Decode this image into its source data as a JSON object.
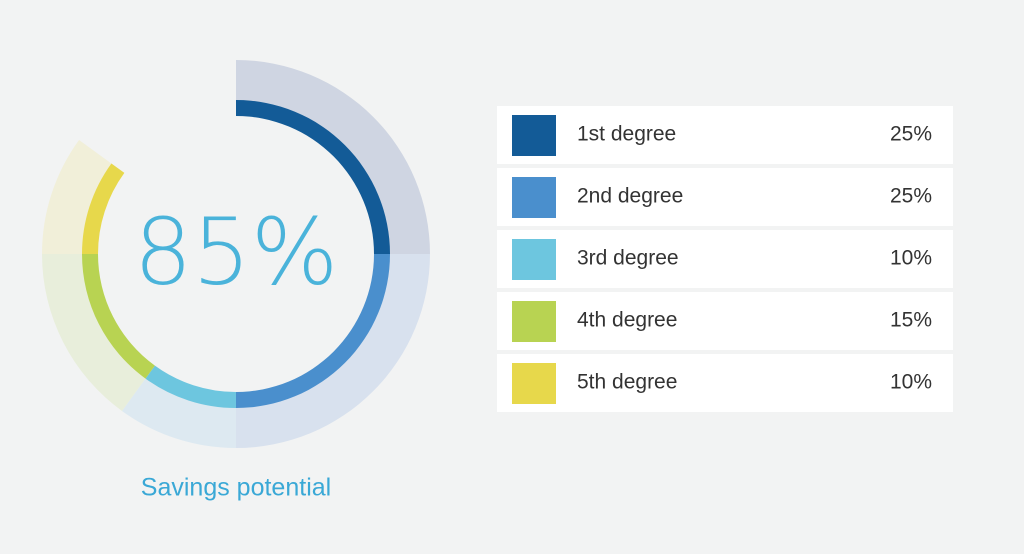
{
  "chart_data": {
    "type": "donut",
    "center_label": "85%",
    "caption": "Savings potential",
    "categories": [
      "1st degree",
      "2nd degree",
      "3rd degree",
      "4th degree",
      "5th degree"
    ],
    "values": [
      25,
      25,
      10,
      15,
      10
    ],
    "value_labels": [
      "25%",
      "25%",
      "10%",
      "15%",
      "10%"
    ],
    "colors": [
      "#135b97",
      "#4a8fcd",
      "#6dc6df",
      "#b8d352",
      "#e7d84b"
    ],
    "pale_colors": [
      "#cfd5e2",
      "#d8e1ee",
      "#dde9f1",
      "#e8eedb",
      "#f1efd9"
    ]
  }
}
